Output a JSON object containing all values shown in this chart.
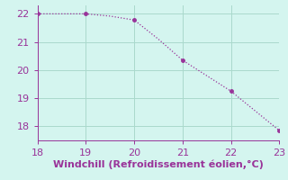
{
  "x": [
    18,
    19,
    19.5,
    20,
    20.5,
    21,
    21.5,
    22,
    22.5,
    23
  ],
  "y": [
    22.0,
    22.0,
    21.92,
    21.78,
    21.1,
    20.35,
    19.8,
    19.25,
    18.55,
    17.85
  ],
  "line_color": "#993399",
  "marker_x": [
    18,
    19,
    20,
    21,
    22,
    23
  ],
  "marker_y": [
    22.0,
    22.0,
    21.78,
    20.35,
    19.25,
    17.85
  ],
  "marker_color": "#993399",
  "background_color": "#d4f5ef",
  "grid_color": "#aad9cc",
  "xlabel": "Windchill (Refroidissement éolien,°C)",
  "xlabel_color": "#993399",
  "tick_color": "#993399",
  "spine_color": "#993399",
  "xlim": [
    18,
    23
  ],
  "ylim": [
    17.5,
    22.3
  ],
  "xticks": [
    18,
    19,
    20,
    21,
    22,
    23
  ],
  "yticks": [
    18,
    19,
    20,
    21,
    22
  ],
  "fontsize_label": 8,
  "fontsize_tick": 8,
  "linewidth": 0.9,
  "markersize": 2.5
}
